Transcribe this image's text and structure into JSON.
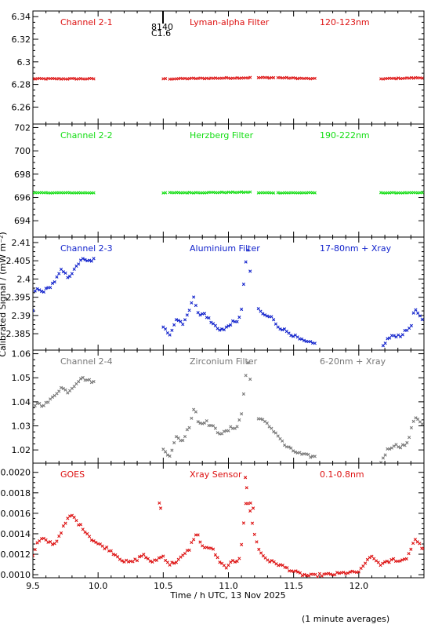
{
  "footer": {
    "xlabel": "Time / h UTC, 13 Nov 2025",
    "note": "(1 minute averages)"
  },
  "shared_ylabel": "Calibrated Signal / (mW m⁻²)",
  "event_marker": {
    "line1": "8140",
    "line2": "C1.6"
  },
  "chart_data": [
    {
      "type": "scatter",
      "marker": "x",
      "color": "#dd1111",
      "title": "Channel 2-1",
      "subtitle": "Lyman-alpha Filter",
      "band": "120-123nm",
      "ylim": [
        6.245,
        6.345
      ],
      "yticks": [
        6.26,
        6.28,
        6.3,
        6.32,
        6.34
      ],
      "xlim": [
        9.5,
        12.5
      ],
      "segments": [
        {
          "x0": 9.5,
          "x1": 9.98,
          "y": [
            [
              9.5,
              6.285
            ],
            [
              9.98,
              6.285
            ]
          ],
          "jitter": 0.0004
        },
        {
          "x0": 10.5,
          "x1": 10.52,
          "y": [
            [
              10.5,
              6.285
            ],
            [
              10.52,
              6.285
            ]
          ],
          "jitter": 0.0003
        },
        {
          "x0": 10.55,
          "x1": 11.18,
          "y": [
            [
              10.55,
              6.285
            ],
            [
              11.18,
              6.286
            ]
          ],
          "jitter": 0.0004
        },
        {
          "x0": 11.23,
          "x1": 11.35,
          "y": [
            [
              11.23,
              6.286
            ],
            [
              11.35,
              6.286
            ]
          ],
          "jitter": 0.0004
        },
        {
          "x0": 11.38,
          "x1": 11.67,
          "y": [
            [
              11.38,
              6.286
            ],
            [
              11.67,
              6.285
            ]
          ],
          "jitter": 0.0004
        },
        {
          "x0": 12.17,
          "x1": 12.5,
          "y": [
            [
              12.17,
              6.285
            ],
            [
              12.5,
              6.286
            ]
          ],
          "jitter": 0.0004
        }
      ]
    },
    {
      "type": "scatter",
      "marker": "x",
      "color": "#11dd11",
      "title": "Channel 2-2",
      "subtitle": "Herzberg Filter",
      "band": "190-222nm",
      "ylim": [
        692.6,
        702.3
      ],
      "yticks": [
        694,
        696,
        698,
        700,
        702
      ],
      "xlim": [
        9.5,
        12.5
      ],
      "segments": [
        {
          "x0": 9.5,
          "x1": 9.98,
          "y": [
            [
              9.5,
              696.4
            ],
            [
              9.98,
              696.4
            ]
          ],
          "jitter": 0.02
        },
        {
          "x0": 10.5,
          "x1": 10.52,
          "y": [
            [
              10.5,
              696.4
            ],
            [
              10.52,
              696.4
            ]
          ],
          "jitter": 0.02
        },
        {
          "x0": 10.55,
          "x1": 11.18,
          "y": [
            [
              10.55,
              696.4
            ],
            [
              11.18,
              696.45
            ]
          ],
          "jitter": 0.03
        },
        {
          "x0": 11.23,
          "x1": 11.35,
          "y": [
            [
              11.23,
              696.4
            ],
            [
              11.35,
              696.4
            ]
          ],
          "jitter": 0.02
        },
        {
          "x0": 11.38,
          "x1": 11.67,
          "y": [
            [
              11.38,
              696.4
            ],
            [
              11.67,
              696.4
            ]
          ],
          "jitter": 0.02
        },
        {
          "x0": 12.17,
          "x1": 12.5,
          "y": [
            [
              12.17,
              696.4
            ],
            [
              12.5,
              696.4
            ]
          ],
          "jitter": 0.02
        }
      ]
    },
    {
      "type": "scatter",
      "marker": "x",
      "color": "#1122cc",
      "title": "Channel 2-3",
      "subtitle": "Aluminium Filter",
      "band": "17-80nm + Xray",
      "ylim": [
        2.3805,
        2.4115
      ],
      "yticks": [
        2.385,
        2.39,
        2.395,
        2.4,
        2.405,
        2.41
      ],
      "xlim": [
        9.5,
        12.5
      ],
      "segments": [
        {
          "x0": 9.5,
          "x1": 9.98,
          "y": [
            [
              9.5,
              2.3915
            ],
            [
              9.52,
              2.3975
            ],
            [
              9.57,
              2.3965
            ],
            [
              9.62,
              2.3975
            ],
            [
              9.67,
              2.3995
            ],
            [
              9.72,
              2.4025
            ],
            [
              9.77,
              2.4005
            ],
            [
              9.82,
              2.4025
            ],
            [
              9.87,
              2.4055
            ],
            [
              9.92,
              2.4048
            ],
            [
              9.98,
              2.4055
            ]
          ],
          "jitter": 0.0004
        },
        {
          "x0": 10.5,
          "x1": 11.18,
          "y": [
            [
              10.5,
              2.3865
            ],
            [
              10.55,
              2.385
            ],
            [
              10.6,
              2.389
            ],
            [
              10.65,
              2.388
            ],
            [
              10.7,
              2.391
            ],
            [
              10.73,
              2.396
            ],
            [
              10.77,
              2.39
            ],
            [
              10.82,
              2.3905
            ],
            [
              10.87,
              2.388
            ],
            [
              10.92,
              2.3865
            ],
            [
              10.97,
              2.386
            ],
            [
              11.02,
              2.388
            ],
            [
              11.07,
              2.388
            ],
            [
              11.1,
              2.392
            ],
            [
              11.13,
              2.4035
            ],
            [
              11.15,
              2.408
            ],
            [
              11.17,
              2.401
            ]
          ],
          "jitter": 0.0005
        },
        {
          "x0": 11.23,
          "x1": 11.67,
          "y": [
            [
              11.23,
              2.3915
            ],
            [
              11.28,
              2.39
            ],
            [
              11.33,
              2.3895
            ],
            [
              11.38,
              2.387
            ],
            [
              11.43,
              2.386
            ],
            [
              11.5,
              2.3845
            ],
            [
              11.57,
              2.383
            ],
            [
              11.62,
              2.3825
            ],
            [
              11.67,
              2.3822
            ]
          ],
          "jitter": 0.0004
        },
        {
          "x0": 12.17,
          "x1": 12.5,
          "y": [
            [
              12.17,
              2.3805
            ],
            [
              12.22,
              2.3835
            ],
            [
              12.27,
              2.3845
            ],
            [
              12.32,
              2.3845
            ],
            [
              12.37,
              2.386
            ],
            [
              12.4,
              2.387
            ],
            [
              12.43,
              2.392
            ],
            [
              12.47,
              2.3895
            ],
            [
              12.5,
              2.388
            ]
          ],
          "jitter": 0.0004
        }
      ]
    },
    {
      "type": "scatter",
      "marker": "x",
      "color": "#777777",
      "title": "Channel 2-4",
      "subtitle": "Zirconium Filter",
      "band": "6-20nm + Xray",
      "ylim": [
        1.0145,
        1.0615
      ],
      "yticks": [
        1.02,
        1.03,
        1.04,
        1.05,
        1.06
      ],
      "xlim": [
        9.5,
        12.5
      ],
      "segments": [
        {
          "x0": 9.5,
          "x1": 9.98,
          "y": [
            [
              9.5,
              1.031
            ],
            [
              9.52,
              1.04
            ],
            [
              9.57,
              1.0385
            ],
            [
              9.62,
              1.04
            ],
            [
              9.67,
              1.043
            ],
            [
              9.72,
              1.046
            ],
            [
              9.77,
              1.044
            ],
            [
              9.82,
              1.047
            ],
            [
              9.87,
              1.05
            ],
            [
              9.92,
              1.049
            ],
            [
              9.98,
              1.048
            ]
          ],
          "jitter": 0.0005
        },
        {
          "x0": 10.5,
          "x1": 11.18,
          "y": [
            [
              10.5,
              1.02
            ],
            [
              10.55,
              1.018
            ],
            [
              10.6,
              1.025
            ],
            [
              10.65,
              1.024
            ],
            [
              10.7,
              1.03
            ],
            [
              10.74,
              1.0385
            ],
            [
              10.77,
              1.031
            ],
            [
              10.82,
              1.032
            ],
            [
              10.87,
              1.03
            ],
            [
              10.92,
              1.0275
            ],
            [
              10.97,
              1.027
            ],
            [
              11.02,
              1.029
            ],
            [
              11.07,
              1.03
            ],
            [
              11.1,
              1.035
            ],
            [
              11.13,
              1.05
            ],
            [
              11.15,
              1.056
            ],
            [
              11.17,
              1.048
            ]
          ],
          "jitter": 0.0008
        },
        {
          "x0": 11.23,
          "x1": 11.67,
          "y": [
            [
              11.23,
              1.0335
            ],
            [
              11.28,
              1.0315
            ],
            [
              11.33,
              1.029
            ],
            [
              11.38,
              1.026
            ],
            [
              11.43,
              1.022
            ],
            [
              11.5,
              1.0195
            ],
            [
              11.57,
              1.018
            ],
            [
              11.62,
              1.0175
            ],
            [
              11.67,
              1.017
            ]
          ],
          "jitter": 0.0006
        },
        {
          "x0": 12.17,
          "x1": 12.5,
          "y": [
            [
              12.17,
              1.015
            ],
            [
              12.22,
              1.02
            ],
            [
              12.27,
              1.022
            ],
            [
              12.32,
              1.0215
            ],
            [
              12.37,
              1.0225
            ],
            [
              12.4,
              1.028
            ],
            [
              12.43,
              1.034
            ],
            [
              12.47,
              1.032
            ],
            [
              12.5,
              1.03
            ]
          ],
          "jitter": 0.0006
        }
      ]
    },
    {
      "type": "scatter",
      "marker": "x",
      "color": "#dd1111",
      "title": "GOES",
      "subtitle": "Xray Sensor",
      "band": "0.1-0.8nm",
      "ylim": [
        0.00097,
        0.00209
      ],
      "yticks": [
        0.001,
        0.0012,
        0.0014,
        0.0016,
        0.0018,
        0.002
      ],
      "ytick_labels": [
        "0.0010",
        "0.0012",
        "0.0014",
        "0.0016",
        "0.0018",
        "0.0020"
      ],
      "xlim": [
        9.5,
        12.5
      ],
      "xticks": [
        9.5,
        10.0,
        10.5,
        11.0,
        11.5,
        12.0
      ],
      "xtick_labels": [
        "9.5",
        "10.0",
        "10.5",
        "11.0",
        "11.5",
        "12.0"
      ],
      "segments": [
        {
          "x0": 9.5,
          "x1": 12.5,
          "y": [
            [
              9.5,
              0.00118
            ],
            [
              9.53,
              0.0013
            ],
            [
              9.57,
              0.00135
            ],
            [
              9.62,
              0.00132
            ],
            [
              9.67,
              0.0013
            ],
            [
              9.72,
              0.00143
            ],
            [
              9.77,
              0.00155
            ],
            [
              9.8,
              0.00158
            ],
            [
              9.85,
              0.0015
            ],
            [
              9.9,
              0.00143
            ],
            [
              9.95,
              0.00135
            ],
            [
              10.0,
              0.0013
            ],
            [
              10.08,
              0.00125
            ],
            [
              10.15,
              0.00118
            ],
            [
              10.2,
              0.00113
            ],
            [
              10.25,
              0.00112
            ],
            [
              10.3,
              0.00115
            ],
            [
              10.35,
              0.0012
            ],
            [
              10.4,
              0.00112
            ],
            [
              10.45,
              0.00115
            ],
            [
              10.5,
              0.00118
            ],
            [
              10.55,
              0.0011
            ],
            [
              10.6,
              0.00113
            ],
            [
              10.65,
              0.00118
            ],
            [
              10.7,
              0.00125
            ],
            [
              10.73,
              0.00135
            ],
            [
              10.76,
              0.0014
            ],
            [
              10.8,
              0.00128
            ],
            [
              10.84,
              0.00125
            ],
            [
              10.87,
              0.00127
            ],
            [
              10.9,
              0.0012
            ],
            [
              10.93,
              0.00112
            ],
            [
              10.97,
              0.00108
            ],
            [
              11.0,
              0.00108
            ],
            [
              11.03,
              0.00113
            ],
            [
              11.06,
              0.00113
            ],
            [
              11.09,
              0.00118
            ],
            [
              11.12,
              0.00155
            ],
            [
              11.14,
              0.00175
            ],
            [
              11.17,
              0.0016
            ],
            [
              11.2,
              0.0014
            ],
            [
              11.23,
              0.00125
            ],
            [
              11.27,
              0.00118
            ],
            [
              11.32,
              0.00113
            ],
            [
              11.37,
              0.00111
            ],
            [
              11.42,
              0.00108
            ],
            [
              11.47,
              0.00105
            ],
            [
              11.52,
              0.00102
            ],
            [
              11.57,
              0.001
            ],
            [
              11.62,
              0.00099
            ],
            [
              11.67,
              0.00099
            ],
            [
              11.72,
              0.001
            ],
            [
              11.78,
              0.001
            ],
            [
              11.85,
              0.00101
            ],
            [
              11.9,
              0.00102
            ],
            [
              11.95,
              0.00102
            ],
            [
              12.0,
              0.00103
            ],
            [
              12.04,
              0.00108
            ],
            [
              12.08,
              0.00118
            ],
            [
              12.12,
              0.00115
            ],
            [
              12.17,
              0.0011
            ],
            [
              12.22,
              0.00112
            ],
            [
              12.27,
              0.00115
            ],
            [
              12.32,
              0.00113
            ],
            [
              12.37,
              0.00117
            ],
            [
              12.4,
              0.00125
            ],
            [
              12.43,
              0.00136
            ],
            [
              12.46,
              0.0013
            ],
            [
              12.5,
              0.00125
            ]
          ],
          "jitter": 1.5e-05
        }
      ],
      "outliers": [
        [
          10.47,
          0.0017
        ],
        [
          10.48,
          0.00165
        ],
        [
          11.13,
          0.00195
        ],
        [
          11.14,
          0.00185
        ],
        [
          11.17,
          0.0017
        ],
        [
          11.19,
          0.00165
        ]
      ]
    }
  ]
}
